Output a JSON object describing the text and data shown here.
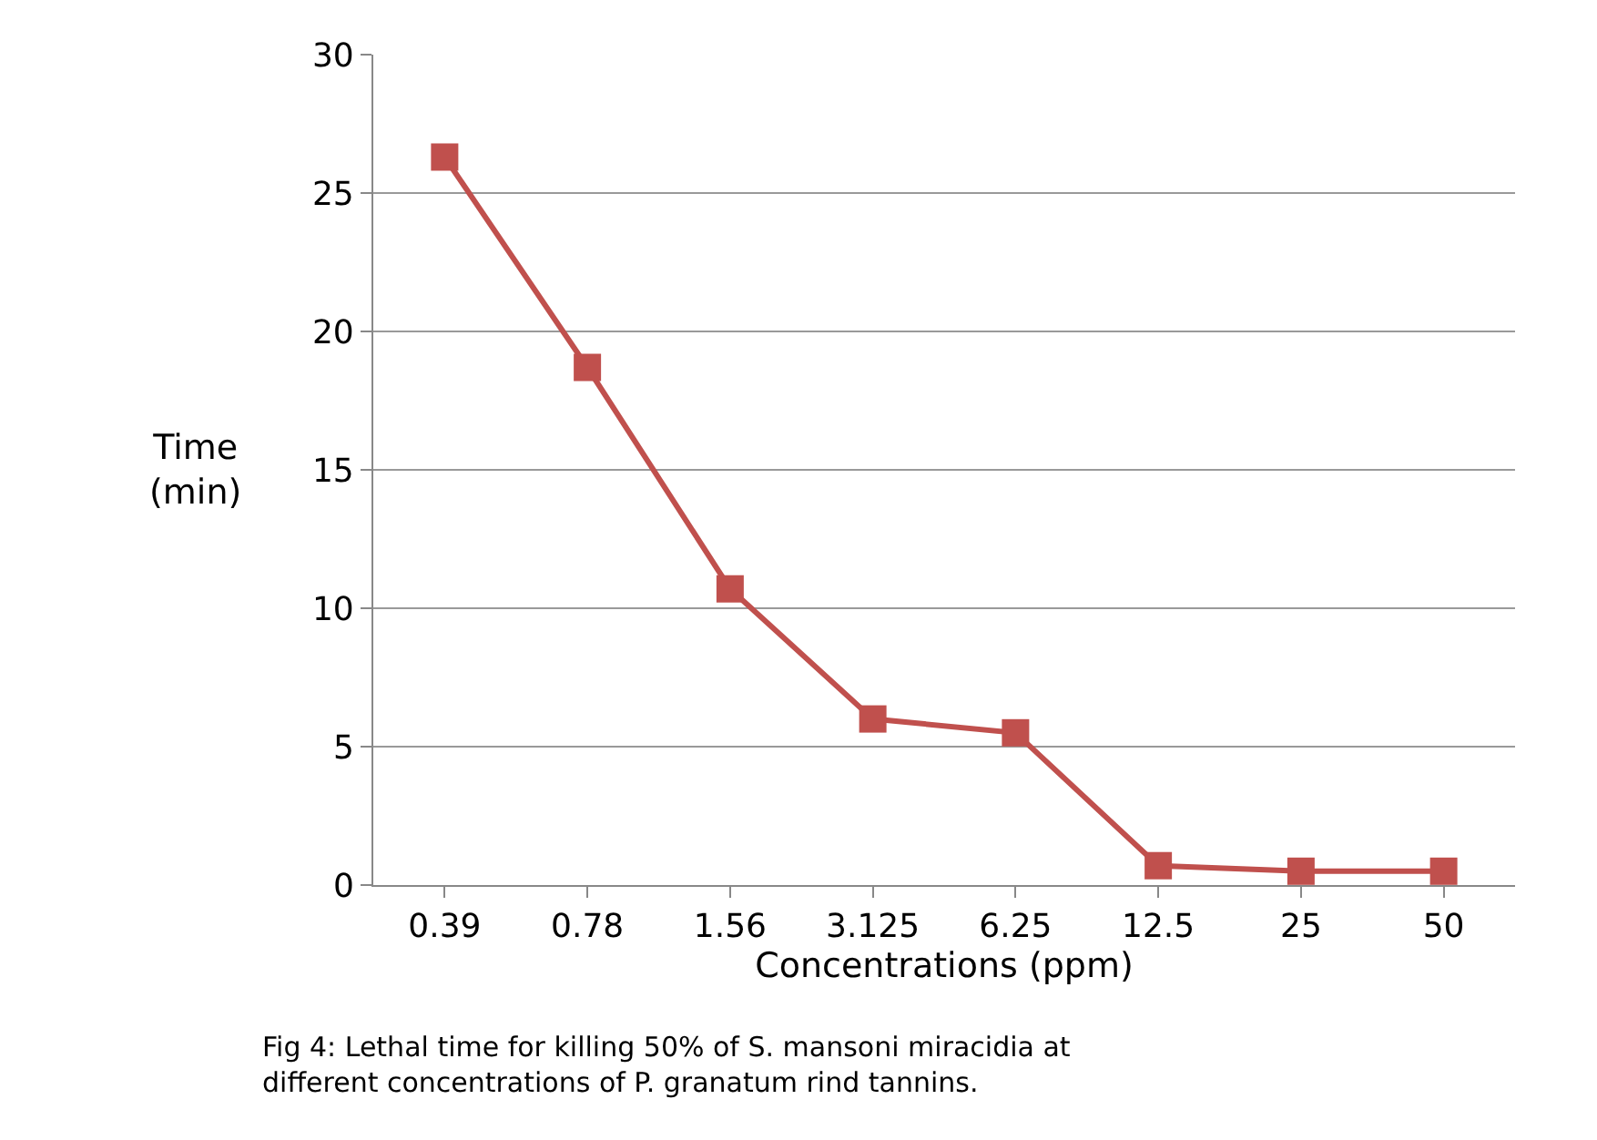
{
  "chart_data": {
    "type": "line",
    "xlabel": "Concentrations (ppm)",
    "ylabel": "Time\n(min)",
    "categories": [
      "0.39",
      "0.78",
      "1.56",
      "3.125",
      "6.25",
      "12.5",
      "25",
      "50"
    ],
    "series": [
      {
        "color": "#c0504d",
        "values": [
          26.3,
          18.7,
          10.7,
          6.0,
          5.5,
          0.7,
          0.5,
          0.5
        ]
      }
    ],
    "ylim": [
      0,
      30
    ],
    "yticks": [
      0,
      5,
      10,
      15,
      20,
      25,
      30
    ],
    "grid": "y",
    "legend": false,
    "marker": "square",
    "line_style": "solid",
    "annotations": [
      "Fig 4: Lethal time for killing 50% of S. mansoni miracidia at\ndifferent concentrations of P. granatum rind tannins."
    ]
  }
}
